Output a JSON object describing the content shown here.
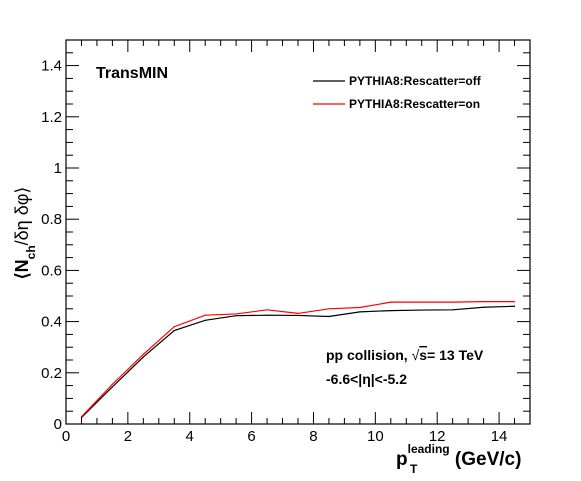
{
  "chart_data": {
    "type": "line",
    "annotation_top_left": "TransMIN",
    "ylabel": {
      "part1": "⟨N",
      "sub": "ch",
      "part2": "/δη δφ⟩"
    },
    "xlabel": {
      "p": "p",
      "sub": "T",
      "sup": "leading",
      "unit": " (GeV/c)"
    },
    "xlim": [
      0,
      15
    ],
    "ylim": [
      0,
      1.5
    ],
    "x_ticks": [
      0,
      2,
      4,
      6,
      8,
      10,
      12,
      14
    ],
    "x_tick_labels": [
      "0",
      "2",
      "4",
      "6",
      "8",
      "10",
      "12",
      "14"
    ],
    "y_ticks": [
      0,
      0.2,
      0.4,
      0.6,
      0.8,
      1.0,
      1.2,
      1.4
    ],
    "y_tick_labels": [
      "0",
      "0.2",
      "0.4",
      "0.6",
      "0.8",
      "1",
      "1.2",
      "1.4"
    ],
    "x": [
      0.5,
      1.5,
      2.5,
      3.5,
      4.5,
      5.5,
      6.5,
      7.5,
      8.5,
      9.5,
      10.5,
      11.5,
      12.5,
      13.5,
      14.5
    ],
    "series": [
      {
        "name": "PYTHIA8:Rescatter=off",
        "color": "#000000",
        "values": [
          0.025,
          0.145,
          0.262,
          0.365,
          0.405,
          0.423,
          0.425,
          0.424,
          0.42,
          0.438,
          0.443,
          0.445,
          0.446,
          0.456,
          0.46
        ]
      },
      {
        "name": "PYTHIA8:Rescatter=on",
        "color": "#ff0000",
        "values": [
          0.028,
          0.155,
          0.272,
          0.38,
          0.425,
          0.43,
          0.446,
          0.432,
          0.45,
          0.455,
          0.476,
          0.476,
          0.476,
          0.478,
          0.478
        ]
      }
    ],
    "legend_position": "top-right",
    "annotation_lines": {
      "line1_prefix": "pp collision, ",
      "sqrt": "√",
      "s": "s",
      "line1_suffix": "= 13 TeV",
      "line2": "-6.6<|η|<-5.2"
    }
  }
}
